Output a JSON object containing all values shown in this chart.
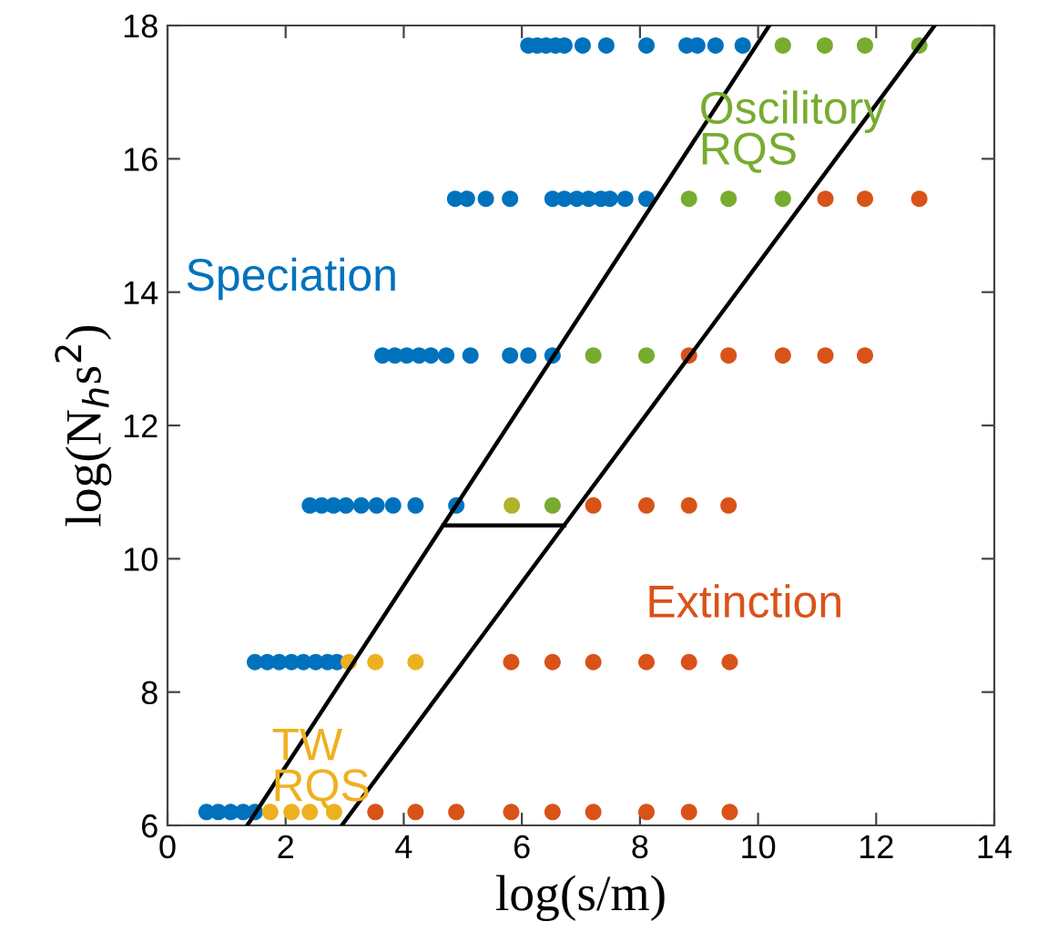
{
  "chart_data": {
    "type": "scatter",
    "xlabel": "log(s/m)",
    "ylabel": "log(N$_{h}$s$^{2}$)",
    "xlim": [
      0,
      14
    ],
    "ylim": [
      6,
      18
    ],
    "xticks": [
      0,
      2,
      4,
      6,
      8,
      10,
      12,
      14
    ],
    "yticks": [
      6,
      8,
      10,
      12,
      14,
      16,
      18
    ],
    "grid": false,
    "legend": false,
    "marker": "circle",
    "series": [
      {
        "name": "Speciation",
        "color": "#0072bd",
        "x": [
          6.11,
          6.26,
          6.41,
          6.57,
          6.72,
          7.03,
          7.43,
          8.11,
          8.79,
          8.97,
          9.28,
          9.74,
          4.87,
          5.07,
          5.39,
          5.8,
          6.52,
          6.72,
          6.93,
          7.13,
          7.34,
          7.49,
          7.75,
          8.11,
          3.64,
          3.85,
          4.05,
          4.26,
          4.46,
          4.72,
          5.13,
          5.8,
          6.11,
          6.52,
          2.41,
          2.61,
          2.81,
          3.02,
          3.28,
          3.54,
          3.82,
          4.2,
          4.89,
          1.48,
          1.69,
          1.89,
          2.1,
          2.3,
          2.51,
          2.71,
          2.87,
          0.66,
          0.86,
          1.07,
          1.28,
          1.48
        ],
        "values": [
          17.7,
          17.7,
          17.7,
          17.7,
          17.7,
          17.7,
          17.7,
          17.7,
          17.7,
          17.7,
          17.7,
          17.7,
          15.4,
          15.4,
          15.4,
          15.4,
          15.4,
          15.4,
          15.4,
          15.4,
          15.4,
          15.4,
          15.4,
          15.4,
          13.05,
          13.05,
          13.05,
          13.05,
          13.05,
          13.05,
          13.05,
          13.05,
          13.05,
          13.05,
          10.8,
          10.8,
          10.8,
          10.8,
          10.8,
          10.8,
          10.8,
          10.8,
          10.8,
          8.45,
          8.45,
          8.45,
          8.45,
          8.45,
          8.45,
          8.45,
          8.45,
          6.2,
          6.2,
          6.2,
          6.2,
          6.2
        ]
      },
      {
        "name": "Oscilitory\nRQS",
        "color": "#77ac30",
        "x": [
          10.42,
          11.13,
          11.81,
          12.73,
          8.83,
          9.5,
          10.42,
          7.21,
          8.11,
          6.52
        ],
        "values": [
          17.7,
          17.7,
          17.7,
          17.7,
          15.4,
          15.4,
          15.4,
          13.05,
          13.05,
          10.8
        ]
      },
      {
        "name": "Extinction",
        "color": "#d95319",
        "x": [
          11.14,
          11.81,
          12.73,
          8.83,
          9.5,
          10.42,
          11.14,
          11.81,
          7.21,
          8.11,
          8.83,
          9.5,
          5.82,
          6.52,
          7.21,
          8.11,
          8.83,
          9.52,
          3.52,
          4.2,
          4.89,
          5.82,
          6.52,
          7.21,
          8.11,
          8.83,
          9.52
        ],
        "values": [
          15.4,
          15.4,
          15.4,
          13.05,
          13.05,
          13.05,
          13.05,
          13.05,
          10.8,
          10.8,
          10.8,
          10.8,
          8.45,
          8.45,
          8.45,
          8.45,
          8.45,
          8.45,
          6.2,
          6.2,
          6.2,
          6.2,
          6.2,
          6.2,
          6.2,
          6.2,
          6.2
        ]
      },
      {
        "name": "TW\nRQS",
        "color": "#edb120",
        "x": [
          3.07,
          3.52,
          4.2,
          1.74,
          2.1,
          2.41,
          2.82
        ],
        "values": [
          8.45,
          8.45,
          8.45,
          6.2,
          6.2,
          6.2,
          6.2
        ]
      },
      {
        "color": "#b3b02a",
        "x": [
          5.83
        ],
        "values": [
          10.8
        ]
      },
      {
        "type": "line",
        "color": "#000000",
        "marker": "none",
        "x": [
          1.35,
          10.19
        ],
        "values": [
          6,
          18
        ]
      },
      {
        "type": "line",
        "color": "#000000",
        "marker": "none",
        "x": [
          2.95,
          12.99
        ],
        "values": [
          6,
          18
        ]
      },
      {
        "type": "line",
        "color": "#000000",
        "marker": "none",
        "x": [
          4.67,
          6.72
        ],
        "values": [
          10.5,
          10.5
        ]
      }
    ]
  }
}
